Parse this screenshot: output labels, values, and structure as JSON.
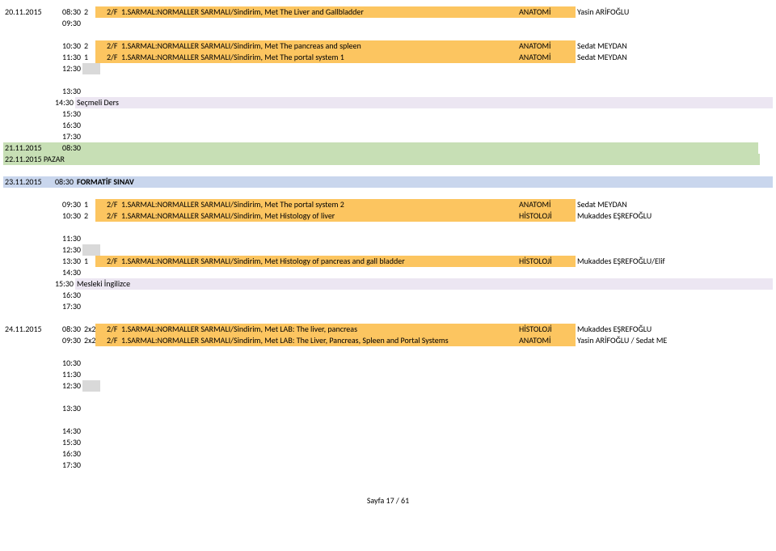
{
  "rows": [
    {
      "style": "bg-orange",
      "date": "20.11.2015",
      "time": "08:30",
      "qty": "2",
      "grp": "2/F",
      "desc": "1.SARMAL:NORMALLER SARMALI/Sindirim, Met The Liver and Gallbladder",
      "dept": "ANATOMİ",
      "inst": "Yasin ARİFOĞLU"
    },
    {
      "style": "",
      "date": "",
      "time": "09:30",
      "qty": "",
      "grp": "",
      "desc": "",
      "dept": "",
      "inst": ""
    },
    {
      "spacer": true
    },
    {
      "style": "bg-orange",
      "date": "",
      "time": "10:30",
      "qty": "2",
      "grp": "2/F",
      "desc": "1.SARMAL:NORMALLER SARMALI/Sindirim, Met The pancreas and spleen",
      "dept": "ANATOMİ",
      "inst": "Sedat MEYDAN"
    },
    {
      "style": "bg-orange",
      "date": "",
      "time": "11:30",
      "qty": "1",
      "grp": "2/F",
      "desc": "1.SARMAL:NORMALLER SARMALI/Sindirim, Met The portal system 1",
      "dept": "ANATOMİ",
      "inst": "Sedat MEYDAN"
    },
    {
      "style": "bg-grey",
      "date": "",
      "time": "12:30",
      "qty": "",
      "grp": "",
      "desc": "",
      "dept": "",
      "inst": ""
    },
    {
      "spacer": true
    },
    {
      "style": "",
      "date": "",
      "time": "13:30",
      "qty": "",
      "grp": "",
      "desc": "",
      "dept": "",
      "inst": ""
    },
    {
      "style": "bg-lav",
      "date": "",
      "time": "14:30",
      "qty": "Seçmeli Ders",
      "grp": "",
      "desc": "",
      "dept": "",
      "inst": ""
    },
    {
      "style": "",
      "date": "",
      "time": "15:30",
      "qty": "",
      "grp": "",
      "desc": "",
      "dept": "",
      "inst": ""
    },
    {
      "style": "",
      "date": "",
      "time": "16:30",
      "qty": "",
      "grp": "",
      "desc": "",
      "dept": "",
      "inst": ""
    },
    {
      "style": "",
      "date": "",
      "time": "17:30",
      "qty": "",
      "grp": "",
      "desc": "",
      "dept": "",
      "inst": ""
    },
    {
      "style": "bg-green-full",
      "date": "21.11.2015",
      "time": "08:30",
      "qty": "",
      "grp": "",
      "desc": "",
      "dept": "",
      "inst": ""
    },
    {
      "style": "bg-green-full",
      "date": "22.11.2015 PAZAR",
      "time": "",
      "qty": "",
      "grp": "",
      "desc": "",
      "dept": "",
      "inst": "",
      "wideDate": true
    },
    {
      "spacer": true
    },
    {
      "style": "bg-blue",
      "date": "23.11.2015",
      "time": "08:30",
      "qty": "FORMATİF SINAV",
      "grp": "",
      "desc": "",
      "dept": "",
      "inst": "",
      "bold": true
    },
    {
      "spacer": true
    },
    {
      "style": "bg-orange",
      "date": "",
      "time": "09:30",
      "qty": "1",
      "grp": "2/F",
      "desc": "1.SARMAL:NORMALLER SARMALI/Sindirim, Met The portal system 2",
      "dept": "ANATOMİ",
      "inst": "Sedat MEYDAN"
    },
    {
      "style": "bg-orange",
      "date": "",
      "time": "10:30",
      "qty": "2",
      "grp": "2/F",
      "desc": "1.SARMAL:NORMALLER SARMALI/Sindirim, Met Histology of liver",
      "dept": "HİSTOLOJİ",
      "inst": "Mukaddes EŞREFOĞLU"
    },
    {
      "spacer": true
    },
    {
      "style": "",
      "date": "",
      "time": "11:30",
      "qty": "",
      "grp": "",
      "desc": "",
      "dept": "",
      "inst": ""
    },
    {
      "style": "bg-grey",
      "date": "",
      "time": "12:30",
      "qty": "",
      "grp": "",
      "desc": "",
      "dept": "",
      "inst": ""
    },
    {
      "style": "bg-orange",
      "date": "",
      "time": "13:30",
      "qty": "1",
      "grp": "2/F",
      "desc": "1.SARMAL:NORMALLER SARMALI/Sindirim, Met Histology of  pancreas and gall bladder",
      "dept": "HİSTOLOJİ",
      "inst": "Mukaddes EŞREFOĞLU/Elif "
    },
    {
      "style": "",
      "date": "",
      "time": "14:30",
      "qty": "",
      "grp": "",
      "desc": "",
      "dept": "",
      "inst": ""
    },
    {
      "style": "bg-lav",
      "date": "",
      "time": "15:30",
      "qty": "Mesleki İngilizce",
      "grp": "",
      "desc": "",
      "dept": "",
      "inst": ""
    },
    {
      "style": "",
      "date": "",
      "time": "16:30",
      "qty": "",
      "grp": "",
      "desc": "",
      "dept": "",
      "inst": ""
    },
    {
      "style": "",
      "date": "",
      "time": "17:30",
      "qty": "",
      "grp": "",
      "desc": "",
      "dept": "",
      "inst": ""
    },
    {
      "spacer": true
    },
    {
      "style": "bg-orange",
      "date": "24.11.2015",
      "time": "08:30",
      "qty": "2x2",
      "grp": "2/F",
      "desc": "1.SARMAL:NORMALLER SARMALI/Sindirim, Met LAB: The liver, pancreas",
      "dept": "HİSTOLOJİ",
      "inst": "Mukaddes EŞREFOĞLU"
    },
    {
      "style": "bg-orange",
      "date": "",
      "time": "09:30",
      "qty": "2x2",
      "grp": "2/F",
      "desc": "1.SARMAL:NORMALLER SARMALI/Sindirim, Met LAB: The Liver, Pancreas, Spleen and Portal Systems",
      "dept": "ANATOMİ",
      "inst": "Yasin ARİFOĞLU / Sedat ME"
    },
    {
      "spacer": true
    },
    {
      "style": "",
      "date": "",
      "time": "10:30",
      "qty": "",
      "grp": "",
      "desc": "",
      "dept": "",
      "inst": ""
    },
    {
      "style": "",
      "date": "",
      "time": "11:30",
      "qty": "",
      "grp": "",
      "desc": "",
      "dept": "",
      "inst": ""
    },
    {
      "style": "bg-grey",
      "date": "",
      "time": "12:30",
      "qty": "",
      "grp": "",
      "desc": "",
      "dept": "",
      "inst": ""
    },
    {
      "spacer": true
    },
    {
      "style": "",
      "date": "",
      "time": "13:30",
      "qty": "",
      "grp": "",
      "desc": "",
      "dept": "",
      "inst": ""
    },
    {
      "spacer": true
    },
    {
      "style": "",
      "date": "",
      "time": "14:30",
      "qty": "",
      "grp": "",
      "desc": "",
      "dept": "",
      "inst": ""
    },
    {
      "style": "",
      "date": "",
      "time": "15:30",
      "qty": "",
      "grp": "",
      "desc": "",
      "dept": "",
      "inst": ""
    },
    {
      "style": "",
      "date": "",
      "time": "16:30",
      "qty": "",
      "grp": "",
      "desc": "",
      "dept": "",
      "inst": ""
    },
    {
      "style": "",
      "date": "",
      "time": "17:30",
      "qty": "",
      "grp": "",
      "desc": "",
      "dept": "",
      "inst": ""
    }
  ],
  "footer": "Sayfa 17 / 61"
}
